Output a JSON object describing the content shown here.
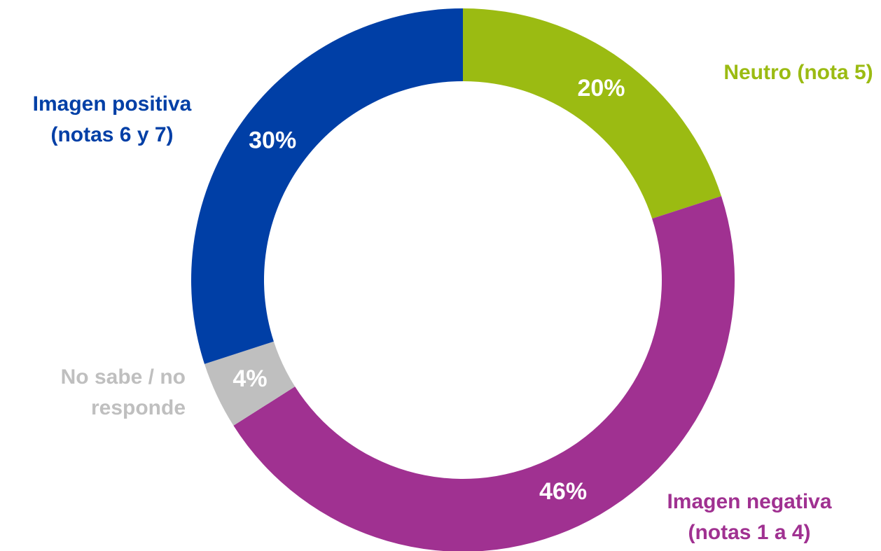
{
  "chart_data": {
    "type": "donut",
    "categories": [
      "Neutro (nota 5)",
      "Imagen negativa\n(notas 1 a 4)",
      "No sabe / no\nresponde",
      "Imagen positiva\n(notas 6 y 7)"
    ],
    "values": [
      20,
      46,
      4,
      30
    ],
    "value_labels": [
      "20%",
      "46%",
      "4%",
      "30%"
    ],
    "colors": [
      "#9bbb12",
      "#a03191",
      "#bfbfbf",
      "#003fa6"
    ]
  }
}
